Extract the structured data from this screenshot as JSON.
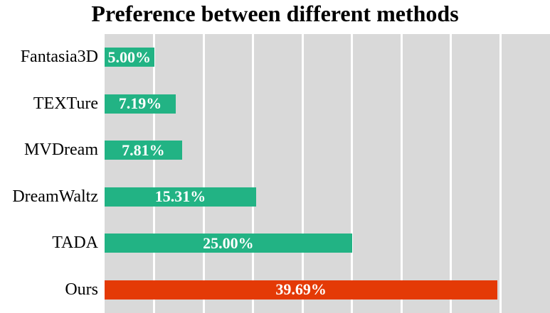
{
  "colors": {
    "bar_default": "#22b384",
    "bar_highlight": "#e43a06",
    "plot_background": "#d9d9d9",
    "gridline": "#ffffff",
    "title_text": "#000000",
    "bar_label_text": "#ffffff"
  },
  "chart_data": {
    "type": "bar",
    "orientation": "horizontal",
    "title": "Preference between different methods",
    "categories": [
      "Fantasia3D",
      "TEXTure",
      "MVDream",
      "DreamWaltz",
      "TADA",
      "Ours"
    ],
    "values": [
      5.0,
      7.19,
      7.81,
      15.31,
      25.0,
      39.69
    ],
    "value_labels": [
      "5.00%",
      "7.19%",
      "7.81%",
      "15.31%",
      "25.00%",
      "39.69%"
    ],
    "bar_colors": [
      "#22b384",
      "#22b384",
      "#22b384",
      "#22b384",
      "#22b384",
      "#e43a06"
    ],
    "highlight_category": "Ours",
    "xlabel": "",
    "ylabel": "",
    "xlim": [
      0,
      45
    ],
    "gridline_step": 5,
    "grid": true,
    "legend": false,
    "value_label_position": "center"
  }
}
